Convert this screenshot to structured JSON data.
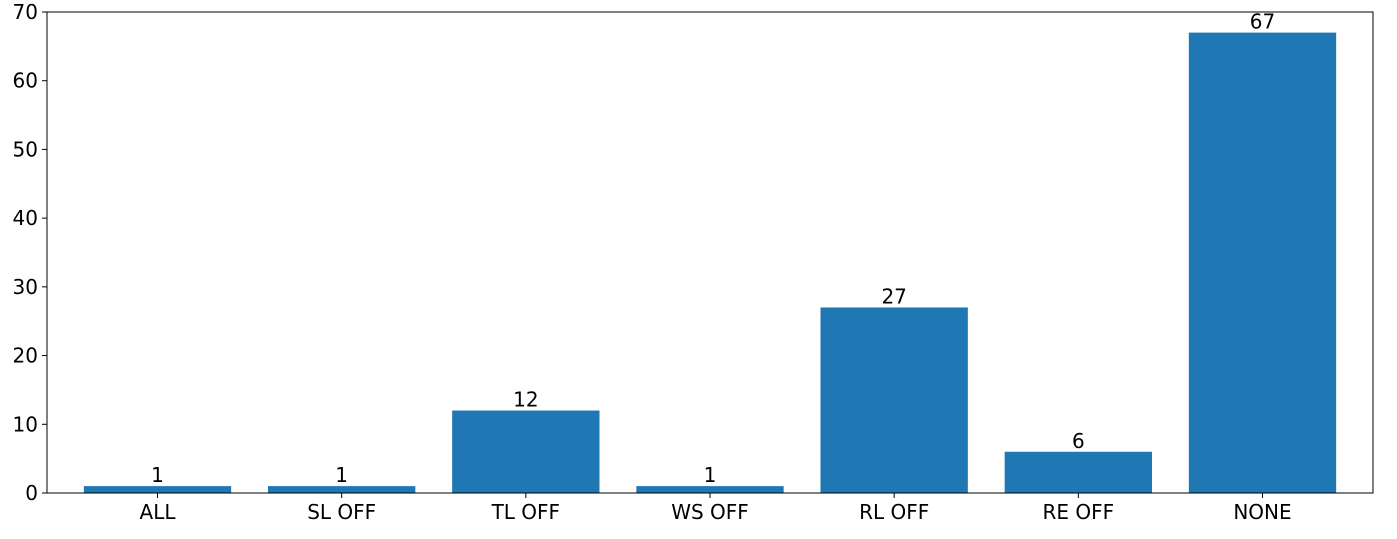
{
  "chart_data": {
    "type": "bar",
    "title": "",
    "xlabel": "",
    "ylabel": "",
    "categories": [
      "ALL",
      "SL OFF",
      "TL OFF",
      "WS OFF",
      "RL OFF",
      "RE OFF",
      "NONE"
    ],
    "values": [
      1,
      1,
      12,
      1,
      27,
      6,
      67
    ],
    "data_labels": [
      "1",
      "1",
      "12",
      "1",
      "27",
      "6",
      "67"
    ],
    "ylim": [
      0,
      70
    ],
    "yticks": [
      0,
      10,
      20,
      30,
      40,
      50,
      60,
      70
    ],
    "ytick_labels": [
      "0",
      "10",
      "20",
      "30",
      "40",
      "50",
      "60",
      "70"
    ],
    "grid": false,
    "bar_color": "#1f77b4"
  }
}
